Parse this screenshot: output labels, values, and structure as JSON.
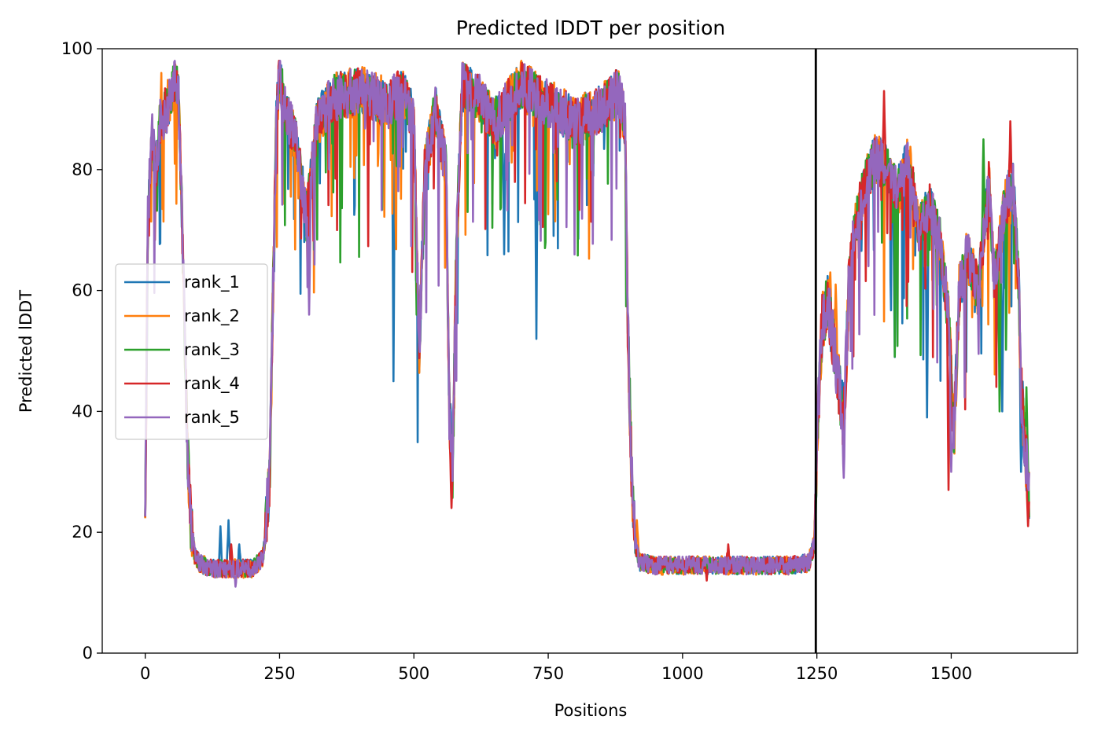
{
  "chart_data": {
    "type": "line",
    "title": "Predicted lDDT per position",
    "xlabel": "Positions",
    "ylabel": "Predicted lDDT",
    "xlim": [
      -80,
      1735
    ],
    "ylim": [
      0,
      100
    ],
    "xticks": [
      0,
      250,
      500,
      750,
      1000,
      1250,
      1500
    ],
    "yticks": [
      0,
      20,
      40,
      60,
      80,
      100
    ],
    "xtick_labels": [
      "0",
      "250",
      "500",
      "750",
      "1000",
      "1250",
      "1500"
    ],
    "ytick_labels": [
      "0",
      "20",
      "40",
      "60",
      "80",
      "100"
    ],
    "grid": false,
    "legend_position": "center-left",
    "vertical_line": {
      "x": 1248,
      "color": "#000000"
    },
    "series": [
      {
        "name": "rank_1",
        "color": "#1f77b4",
        "seed": 11,
        "amp": 1.0,
        "overrides": [
          [
            462,
            45
          ],
          [
            728,
            52
          ],
          [
            668,
            66
          ],
          [
            1455,
            39
          ],
          [
            1595,
            40
          ],
          [
            1630,
            30
          ],
          [
            1395,
            49
          ],
          [
            140,
            21
          ],
          [
            155,
            22
          ],
          [
            175,
            18
          ]
        ]
      },
      {
        "name": "rank_2",
        "color": "#ff7f0e",
        "seed": 23,
        "amp": 1.05,
        "overrides": [
          [
            82,
            24
          ],
          [
            1275,
            63
          ],
          [
            1285,
            61
          ],
          [
            915,
            22
          ],
          [
            568,
            33
          ],
          [
            30,
            96
          ],
          [
            700,
            98
          ]
        ]
      },
      {
        "name": "rank_3",
        "color": "#2ca02c",
        "seed": 37,
        "amp": 0.95,
        "overrides": [
          [
            1560,
            85
          ],
          [
            1640,
            44
          ],
          [
            1590,
            40
          ],
          [
            505,
            56
          ],
          [
            1300,
            40
          ]
        ]
      },
      {
        "name": "rank_4",
        "color": "#d62728",
        "seed": 53,
        "amp": 1.0,
        "overrides": [
          [
            570,
            24
          ],
          [
            1085,
            18
          ],
          [
            1495,
            27
          ],
          [
            1610,
            88
          ],
          [
            1375,
            93
          ],
          [
            160,
            18
          ],
          [
            1045,
            12
          ],
          [
            1643,
            21
          ]
        ]
      },
      {
        "name": "rank_5",
        "color": "#9467bd",
        "seed": 71,
        "amp": 1.0,
        "overrides": [
          [
            168,
            11
          ],
          [
            1300,
            29
          ],
          [
            305,
            56
          ],
          [
            1500,
            30
          ]
        ]
      }
    ],
    "base_profile": [
      [
        0,
        25
      ],
      [
        5,
        72
      ],
      [
        12,
        86
      ],
      [
        20,
        80
      ],
      [
        28,
        88
      ],
      [
        40,
        90
      ],
      [
        55,
        95
      ],
      [
        62,
        92
      ],
      [
        66,
        80
      ],
      [
        72,
        60
      ],
      [
        78,
        35
      ],
      [
        85,
        22
      ],
      [
        92,
        16
      ],
      [
        100,
        15
      ],
      [
        120,
        14
      ],
      [
        150,
        14
      ],
      [
        200,
        14
      ],
      [
        220,
        16
      ],
      [
        232,
        30
      ],
      [
        240,
        70
      ],
      [
        245,
        92
      ],
      [
        250,
        96
      ],
      [
        260,
        90
      ],
      [
        280,
        85
      ],
      [
        300,
        72
      ],
      [
        320,
        88
      ],
      [
        350,
        92
      ],
      [
        400,
        93
      ],
      [
        450,
        91
      ],
      [
        480,
        93
      ],
      [
        500,
        88
      ],
      [
        510,
        50
      ],
      [
        520,
        80
      ],
      [
        540,
        90
      ],
      [
        560,
        80
      ],
      [
        566,
        40
      ],
      [
        572,
        30
      ],
      [
        580,
        70
      ],
      [
        590,
        94
      ],
      [
        620,
        92
      ],
      [
        650,
        88
      ],
      [
        700,
        94
      ],
      [
        750,
        91
      ],
      [
        800,
        88
      ],
      [
        850,
        90
      ],
      [
        880,
        93
      ],
      [
        893,
        88
      ],
      [
        898,
        55
      ],
      [
        905,
        30
      ],
      [
        912,
        18
      ],
      [
        920,
        15
      ],
      [
        950,
        14.5
      ],
      [
        1000,
        14.5
      ],
      [
        1100,
        14.5
      ],
      [
        1200,
        14.5
      ],
      [
        1235,
        15
      ],
      [
        1245,
        18
      ],
      [
        1252,
        40
      ],
      [
        1260,
        55
      ],
      [
        1270,
        58
      ],
      [
        1280,
        52
      ],
      [
        1290,
        45
      ],
      [
        1300,
        38
      ],
      [
        1310,
        62
      ],
      [
        1320,
        70
      ],
      [
        1340,
        78
      ],
      [
        1360,
        82
      ],
      [
        1380,
        80
      ],
      [
        1400,
        76
      ],
      [
        1420,
        82
      ],
      [
        1440,
        70
      ],
      [
        1460,
        74
      ],
      [
        1480,
        68
      ],
      [
        1495,
        55
      ],
      [
        1505,
        35
      ],
      [
        1515,
        60
      ],
      [
        1530,
        66
      ],
      [
        1550,
        60
      ],
      [
        1570,
        78
      ],
      [
        1580,
        62
      ],
      [
        1600,
        74
      ],
      [
        1615,
        78
      ],
      [
        1625,
        62
      ],
      [
        1630,
        44
      ],
      [
        1637,
        35
      ],
      [
        1645,
        26
      ]
    ]
  }
}
